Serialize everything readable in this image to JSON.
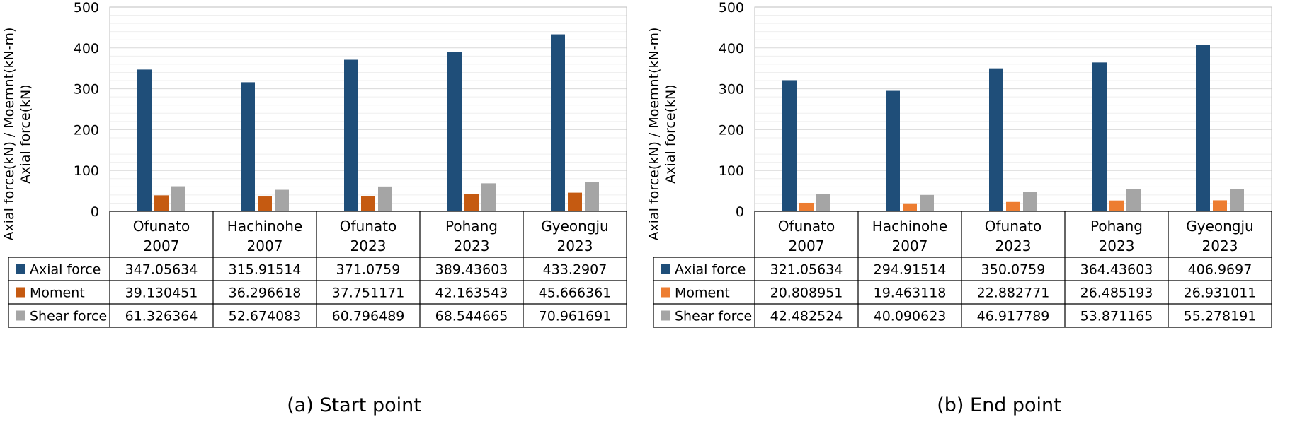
{
  "chart_data": [
    {
      "type": "bar",
      "caption": "(a) Start point",
      "ylabel_lines": [
        "Axial force(kN) / Moemnt(kN-m)",
        "Axial force(kN)"
      ],
      "ylim": [
        0,
        500
      ],
      "yticks": [
        0,
        100,
        200,
        300,
        400,
        500
      ],
      "categories": [
        [
          "Ofunato",
          "2007"
        ],
        [
          "Hachinohe",
          "2007"
        ],
        [
          "Ofunato",
          "2023"
        ],
        [
          "Pohang",
          "2023"
        ],
        [
          "Gyeongju",
          "2023"
        ]
      ],
      "series": [
        {
          "name": "Axial force",
          "color": "#1f4e79",
          "values": [
            347.05634,
            315.91514,
            371.0759,
            389.43603,
            433.2907
          ],
          "labels": [
            "347.05634",
            "315.91514",
            "371.0759",
            "389.43603",
            "433.2907"
          ]
        },
        {
          "name": "Moment",
          "color": "#c55a11",
          "values": [
            39.130451,
            36.296618,
            37.751171,
            42.163543,
            45.666361
          ],
          "labels": [
            "39.130451",
            "36.296618",
            "37.751171",
            "42.163543",
            "45.666361"
          ]
        },
        {
          "name": "Shear force",
          "color": "#a5a5a5",
          "values": [
            61.326364,
            52.674083,
            60.796489,
            68.544665,
            70.961691
          ],
          "labels": [
            "61.326364",
            "52.674083",
            "60.796489",
            "68.544665",
            "70.961691"
          ]
        }
      ],
      "grid": true,
      "legend": "data-table"
    },
    {
      "type": "bar",
      "caption": "(b) End point",
      "ylabel_lines": [
        "Axial force(kN) / Moemnt(kN-m)",
        "Axial force(kN)"
      ],
      "ylim": [
        0,
        500
      ],
      "yticks": [
        0,
        100,
        200,
        300,
        400,
        500
      ],
      "categories": [
        [
          "Ofunato",
          "2007"
        ],
        [
          "Hachinohe",
          "2007"
        ],
        [
          "Ofunato",
          "2023"
        ],
        [
          "Pohang",
          "2023"
        ],
        [
          "Gyeongju",
          "2023"
        ]
      ],
      "series": [
        {
          "name": "Axial force",
          "color": "#1f4e79",
          "values": [
            321.05634,
            294.91514,
            350.0759,
            364.43603,
            406.9697
          ],
          "labels": [
            "321.05634",
            "294.91514",
            "350.0759",
            "364.43603",
            "406.9697"
          ]
        },
        {
          "name": "Moment",
          "color": "#ed7d31",
          "values": [
            20.808951,
            19.463118,
            22.882771,
            26.485193,
            26.931011
          ],
          "labels": [
            "20.808951",
            "19.463118",
            "22.882771",
            "26.485193",
            "26.931011"
          ]
        },
        {
          "name": "Shear force",
          "color": "#a5a5a5",
          "values": [
            42.482524,
            40.090623,
            46.917789,
            53.871165,
            55.278191
          ],
          "labels": [
            "42.482524",
            "40.090623",
            "46.917789",
            "53.871165",
            "55.278191"
          ]
        }
      ],
      "grid": true,
      "legend": "data-table"
    }
  ]
}
